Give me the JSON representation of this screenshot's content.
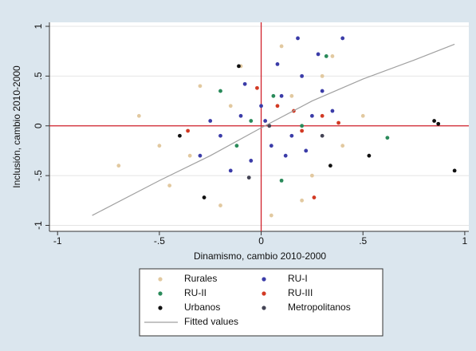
{
  "chart_data": {
    "type": "scatter",
    "xlabel": "Dinamismo, cambio 2010-2000",
    "ylabel": "Inclusión, cambio 2010-2000",
    "xlim": [
      -1.04,
      1.02
    ],
    "ylim": [
      -1.06,
      1.04
    ],
    "xticks": [
      -1,
      {
        "value": -0.5,
        "label": "-.5"
      },
      0,
      {
        "value": 0.5,
        "label": ".5"
      },
      1
    ],
    "yticks": [
      -1,
      {
        "value": -0.5,
        "label": "-.5"
      },
      0,
      {
        "value": 0.5,
        "label": ".5"
      },
      1
    ],
    "grid": true,
    "reference_color": "#d0202a",
    "series": [
      {
        "name": "Rurales",
        "color": "#e2c9a0",
        "x": [
          -0.6,
          -0.45,
          -0.3,
          -0.2,
          -0.1,
          0.05,
          0.15,
          0.25,
          0.35,
          0.4,
          -0.5,
          -0.35,
          0.1,
          0.2,
          -0.15,
          0.5,
          -0.7,
          0.3
        ],
        "values": [
          0.1,
          -0.6,
          0.4,
          -0.8,
          0.6,
          -0.9,
          0.3,
          -0.5,
          0.7,
          -0.2,
          -0.2,
          -0.3,
          0.8,
          -0.75,
          0.2,
          0.1,
          -0.4,
          0.5
        ]
      },
      {
        "name": "RU-I",
        "color": "#3b3ca8",
        "x": [
          -0.2,
          -0.1,
          0,
          0.05,
          0.1,
          0.15,
          0.2,
          0.25,
          0.3,
          -0.05,
          -0.15,
          0.08,
          0.18,
          -0.25,
          0.35,
          0.12,
          -0.08,
          0.22,
          0.4,
          -0.3,
          0.02,
          0.28
        ],
        "values": [
          -0.1,
          0.1,
          0.2,
          -0.2,
          0.3,
          -0.1,
          0.5,
          0.1,
          0.35,
          -0.35,
          -0.45,
          0.62,
          0.88,
          0.05,
          0.15,
          -0.3,
          0.42,
          -0.25,
          0.88,
          -0.3,
          0.05,
          0.72
        ]
      },
      {
        "name": "RU-II",
        "color": "#2a8a5a",
        "x": [
          -0.12,
          0.06,
          -0.2,
          0.32,
          0.1,
          0.62,
          -0.05,
          0.2
        ],
        "values": [
          -0.2,
          0.3,
          0.35,
          0.7,
          -0.55,
          -0.12,
          0.05,
          0
        ]
      },
      {
        "name": "RU-III",
        "color": "#d23a24",
        "x": [
          -0.36,
          0.08,
          0.16,
          0.26,
          0.38,
          -0.02,
          0.2,
          0.3
        ],
        "values": [
          -0.05,
          0.2,
          0.15,
          -0.72,
          0.03,
          0.38,
          -0.05,
          0.1
        ]
      },
      {
        "name": "Urbanos",
        "color": "#111111",
        "x": [
          -0.4,
          -0.28,
          0.85,
          0.87,
          0.95,
          0.53,
          0.34,
          -0.11
        ],
        "values": [
          -0.1,
          -0.72,
          0.05,
          0.02,
          -0.45,
          -0.3,
          -0.4,
          0.6
        ]
      },
      {
        "name": "Metropolitanos",
        "color": "#444455",
        "x": [
          0.04,
          0.3,
          -0.06
        ],
        "values": [
          0,
          -0.1,
          -0.52
        ]
      },
      {
        "name": "Fitted values",
        "color": "#a0a0a0",
        "type": "line",
        "x": [
          -0.83,
          -0.5,
          -0.25,
          0,
          0.25,
          0.5,
          0.75,
          0.95
        ],
        "values": [
          -0.9,
          -0.55,
          -0.3,
          -0.02,
          0.25,
          0.47,
          0.66,
          0.82
        ]
      }
    ]
  }
}
